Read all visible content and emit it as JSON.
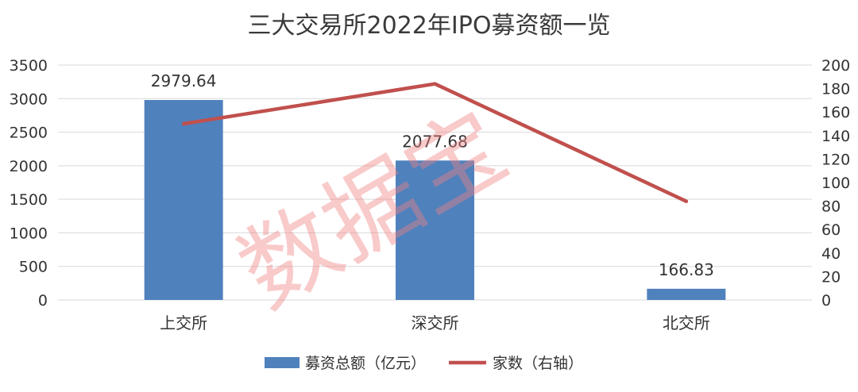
{
  "chart_data": {
    "type": "bar",
    "title": "三大交易所2022年IPO募资额一览",
    "categories": [
      "上交所",
      "深交所",
      "北交所"
    ],
    "series": [
      {
        "name": "募资总额（亿元）",
        "kind": "bar",
        "axis": "left",
        "color": "#4f81bd",
        "values": [
          2979.64,
          2077.68,
          166.83
        ],
        "labels": [
          "2979.64",
          "2077.68",
          "166.83"
        ]
      },
      {
        "name": "家数（右轴）",
        "kind": "line",
        "axis": "right",
        "color": "#c0504d",
        "values": [
          150,
          184,
          84
        ]
      }
    ],
    "y_left": {
      "lim": [
        0,
        3500
      ],
      "ticks": [
        "0",
        "500",
        "1000",
        "1500",
        "2000",
        "2500",
        "3000",
        "3500"
      ]
    },
    "y_right": {
      "lim": [
        0,
        200
      ],
      "ticks": [
        "0",
        "20",
        "40",
        "60",
        "80",
        "100",
        "120",
        "140",
        "160",
        "180",
        "200"
      ]
    },
    "grid": true,
    "legend_position": "bottom",
    "watermark": "数据宝"
  }
}
